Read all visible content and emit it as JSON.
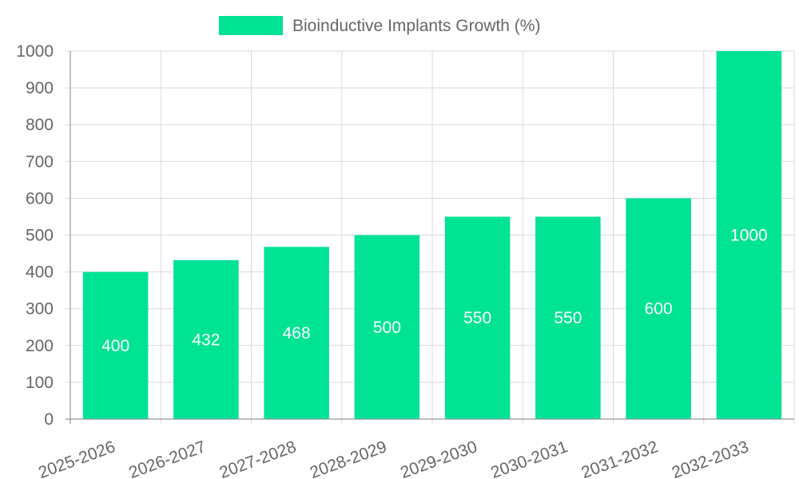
{
  "chart_data": {
    "type": "bar",
    "title": "",
    "xlabel": "",
    "ylabel": "",
    "categories": [
      "2025-2026",
      "2026-2027",
      "2027-2028",
      "2028-2029",
      "2029-2030",
      "2030-2031",
      "2031-2032",
      "2032-2033"
    ],
    "series": [
      {
        "name": "Bioinductive Implants Growth (%)",
        "values": [
          400,
          432,
          468,
          500,
          550,
          550,
          600,
          1000
        ],
        "color": "#00e394"
      }
    ],
    "data_labels": [
      "400",
      "432",
      "468",
      "500",
      "550",
      "550",
      "600",
      "1000"
    ],
    "ylim": [
      0,
      1000
    ],
    "yticks": [
      "0",
      "100",
      "200",
      "300",
      "400",
      "500",
      "600",
      "700",
      "800",
      "900",
      "1000"
    ],
    "grid": true,
    "legend_position": "top-center"
  }
}
